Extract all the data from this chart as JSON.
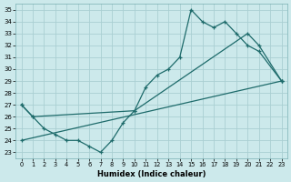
{
  "xlabel": "Humidex (Indice chaleur)",
  "bg_color": "#cce9eb",
  "grid_color": "#aacfd2",
  "line_color": "#1e6b6b",
  "xlim": [
    -0.5,
    23.5
  ],
  "ylim": [
    22.5,
    35.5
  ],
  "xticks": [
    0,
    1,
    2,
    3,
    4,
    5,
    6,
    7,
    8,
    9,
    10,
    11,
    12,
    13,
    14,
    15,
    16,
    17,
    18,
    19,
    20,
    21,
    22,
    23
  ],
  "yticks": [
    23,
    24,
    25,
    26,
    27,
    28,
    29,
    30,
    31,
    32,
    33,
    34,
    35
  ],
  "line1_x": [
    0,
    1,
    2,
    3,
    4,
    5,
    6,
    7,
    8,
    9,
    10,
    11,
    12,
    13,
    14,
    15,
    16,
    17,
    18,
    19,
    20,
    21,
    23
  ],
  "line1_y": [
    27,
    26,
    25,
    24.5,
    24,
    24,
    23.5,
    23,
    24,
    25.5,
    26.5,
    28.5,
    29.5,
    30,
    31,
    35,
    34,
    33.5,
    34,
    33,
    32,
    31.5,
    29
  ],
  "line2_x": [
    0,
    1,
    10,
    20,
    21,
    23
  ],
  "line2_y": [
    27,
    26,
    26.5,
    33,
    32,
    29
  ],
  "line3_x": [
    0,
    23
  ],
  "line3_y": [
    24,
    29
  ]
}
